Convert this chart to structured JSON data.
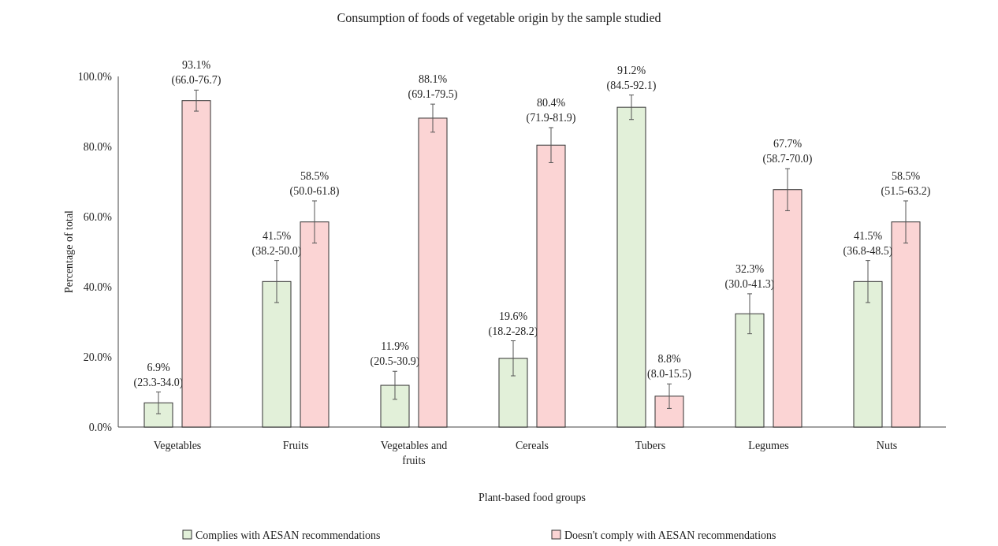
{
  "chart_data": {
    "type": "bar",
    "title": "Consumption of foods of vegetable origin by the sample studied",
    "xlabel": "Plant-based food groups",
    "ylabel": "Percentage of total",
    "categories": [
      "Vegetables",
      "Fruits",
      "Vegetables and fruits",
      "Cereals",
      "Tubers",
      "Legumes",
      "Nuts"
    ],
    "series": [
      {
        "name": "Complies with AESAN recommendations",
        "color": "#e2f0d9",
        "values": [
          6.9,
          41.5,
          11.9,
          19.6,
          91.2,
          32.3,
          41.5
        ],
        "errors": [
          3.1,
          6,
          4,
          5,
          3.5,
          5.7,
          6
        ],
        "value_labels": [
          "6.9%\n(23.3-34.0)",
          "41.5%\n(38.2-50.0)",
          "11.9%\n(20.5-30.9)",
          "19.6%\n(18.2-28.2)",
          "91.2%\n(84.5-92.1)",
          "32.3%\n(30.0-41.3)",
          "41.5%\n(36.8-48.5)"
        ]
      },
      {
        "name": "Doesn't comply with AESAN recommendations",
        "color": "#fbd4d4",
        "values": [
          93.1,
          58.5,
          88.1,
          80.4,
          8.8,
          67.7,
          58.5
        ],
        "errors": [
          3,
          6,
          4,
          5,
          3.5,
          6,
          6
        ],
        "value_labels": [
          "93.1%\n(66.0-76.7)",
          "58.5%\n(50.0-61.8)",
          "88.1%\n(69.1-79.5)",
          "80.4%\n(71.9-81.9)",
          "8.8%\n(8.0-15.5)",
          "67.7%\n(58.7-70.0)",
          "58.5%\n(51.5-63.2)"
        ]
      }
    ],
    "ylim": [
      0,
      100
    ],
    "yticks": [
      {
        "value": 0,
        "label": "0.0%"
      },
      {
        "value": 20,
        "label": "20.0%"
      },
      {
        "value": 40,
        "label": "40.0%"
      },
      {
        "value": 60,
        "label": "60.0%"
      },
      {
        "value": 80,
        "label": "80.0%"
      },
      {
        "value": 100,
        "label": "100.0%"
      }
    ],
    "grid": false,
    "legend": "bottom"
  }
}
